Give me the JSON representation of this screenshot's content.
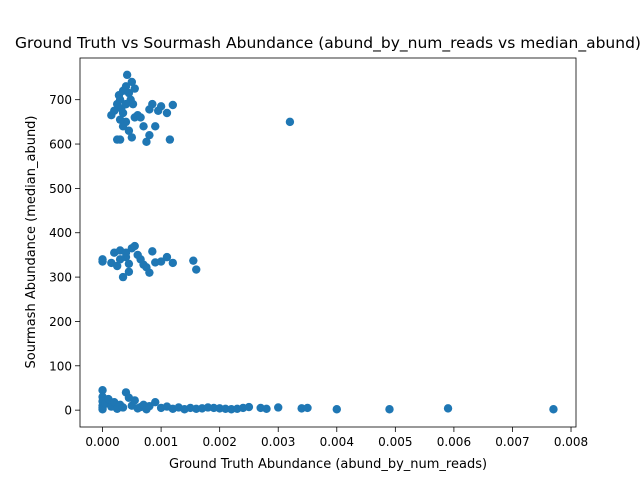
{
  "chart_data": {
    "type": "scatter",
    "title": "Ground Truth vs Sourmash Abundance (abund_by_num_reads vs median_abund)",
    "x_label": "Ground Truth Abundance (abund_by_num_reads)",
    "y_label": "Sourmash Abundance (median_abund)",
    "color": "#1f77b4",
    "xlim": [
      -0.000385,
      0.008085
    ],
    "ylim": [
      -38,
      794
    ],
    "xticks": [
      {
        "value": 0,
        "label": "0.000"
      },
      {
        "value": 0.001,
        "label": "0.001"
      },
      {
        "value": 0.002,
        "label": "0.002"
      },
      {
        "value": 0.003,
        "label": "0.003"
      },
      {
        "value": 0.004,
        "label": "0.004"
      },
      {
        "value": 0.005,
        "label": "0.005"
      },
      {
        "value": 0.006,
        "label": "0.006"
      },
      {
        "value": 0.007,
        "label": "0.007"
      },
      {
        "value": 0.008,
        "label": "0.008"
      }
    ],
    "yticks": [
      0,
      100,
      200,
      300,
      400,
      500,
      600,
      700
    ],
    "x": [
      0.00015,
      0.0002,
      0.00025,
      0.00028,
      0.0003,
      0.00032,
      0.00035,
      0.0004,
      0.00042,
      0.00045,
      0.0005,
      0.00048,
      0.00052,
      0.00055,
      0.0004,
      0.00035,
      0.0003,
      0.00025,
      0.0003,
      0.0005,
      0.00045,
      0.0006,
      0.00065,
      0.0007,
      0.00075,
      0.0008,
      0.00085,
      0.0009,
      0.00095,
      0.001,
      0.0011,
      0.00115,
      0.0012,
      0.0008,
      0.00055,
      0.0004,
      0.00035,
      0.0032,
      0,
      0,
      0.00015,
      0.0002,
      0.00025,
      0.0003,
      0.00035,
      0.0004,
      0.00045,
      0.0005,
      0.00055,
      0.00045,
      0.0006,
      0.00065,
      0.0007,
      0.00075,
      0.0008,
      0.00085,
      0.0009,
      0.001,
      0.0011,
      0.0012,
      0.00155,
      0.0016,
      0.0003,
      0.0004,
      0,
      0,
      0,
      0,
      0,
      0,
      5e-05,
      0.0001,
      0.00015,
      0.0002,
      0.00025,
      0.0003,
      0.00035,
      0.0004,
      0.00045,
      0.0005,
      0.00055,
      0.0006,
      0.00065,
      0.0007,
      0.00075,
      0.0008,
      0.0009,
      0.001,
      0.0011,
      0.0012,
      0.0013,
      0.0014,
      0.0015,
      0.0016,
      0.0017,
      0.0018,
      0.0019,
      0.002,
      0.0021,
      0.0022,
      0.0023,
      0.0024,
      0.0025,
      0.0027,
      0.0028,
      0.003,
      0.0034,
      0.0035,
      0.004,
      0.0049,
      0.0059,
      0.0077
    ],
    "y": [
      665,
      675,
      690,
      710,
      700,
      680,
      720,
      730,
      756,
      715,
      740,
      700,
      690,
      660,
      650,
      640,
      655,
      610,
      610,
      615,
      630,
      665,
      660,
      640,
      605,
      620,
      690,
      640,
      675,
      685,
      670,
      610,
      688,
      678,
      725,
      690,
      670,
      650,
      340,
      335,
      332,
      355,
      325,
      360,
      300,
      345,
      330,
      365,
      370,
      312,
      350,
      340,
      328,
      322,
      310,
      358,
      333,
      335,
      345,
      332,
      337,
      317,
      340,
      355,
      45,
      30,
      20,
      10,
      5,
      2,
      15,
      25,
      8,
      18,
      3,
      12,
      6,
      40,
      28,
      10,
      22,
      4,
      7,
      12,
      2,
      9,
      18,
      5,
      8,
      3,
      6,
      2,
      5,
      3,
      4,
      6,
      5,
      4,
      3,
      2,
      3,
      5,
      7,
      5,
      3,
      6,
      4,
      5,
      2,
      2,
      4,
      2
    ]
  }
}
